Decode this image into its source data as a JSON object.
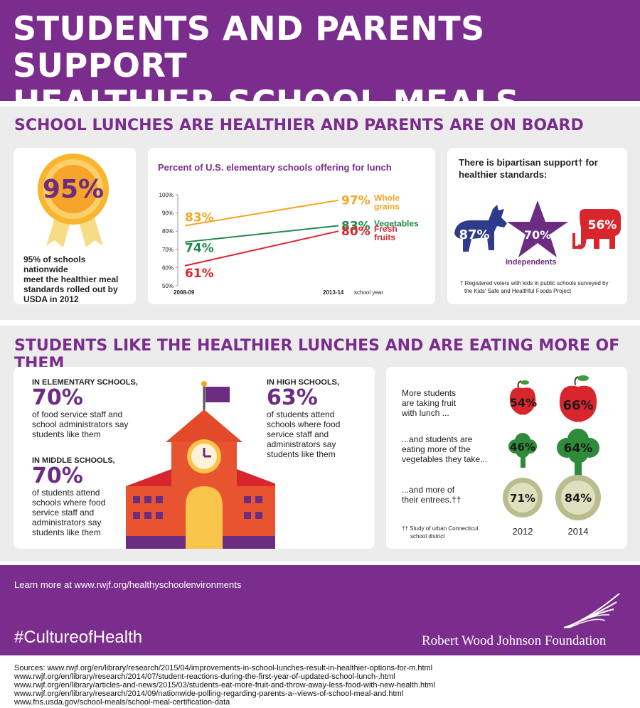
{
  "title": {
    "line1": "STUDENTS AND PARENTS SUPPORT",
    "line2": "HEALTHIER SCHOOL MEALS"
  },
  "section1": {
    "title": "SCHOOL LUNCHES ARE HEALTHIER AND PARENTS ARE ON BOARD",
    "ribbon": {
      "value": "95%",
      "text_lines": [
        "95% of schools nationwide",
        "meet the healthier meal",
        "standards rolled out by",
        "USDA in 2012"
      ]
    },
    "bipartisan": {
      "heading_lines": [
        "There is bipartisan support† for",
        "healthier standards:"
      ],
      "democrat": "87%",
      "independent": "70%",
      "independent_label": "Independents",
      "republican": "56%",
      "footnote_lines": [
        "† Registered voters with kids in public schools surveyed by",
        "the Kids' Safe and Healthful Foods Project"
      ]
    }
  },
  "chart_data": {
    "type": "line",
    "title": "Percent of U.S. elementary schools offering for lunch",
    "x": [
      "2008-09",
      "2013-14"
    ],
    "x_end_suffix": "school year",
    "ylim": [
      50,
      100
    ],
    "yticks": [
      "100%",
      "90%",
      "80%",
      "70%",
      "60%",
      "50%"
    ],
    "series": [
      {
        "name": "Whole grains",
        "name_lines": [
          "Whole",
          "grains"
        ],
        "values": [
          83,
          97
        ],
        "labels": [
          "83%",
          "97%"
        ],
        "color": "#f5a623"
      },
      {
        "name": "Vegetables",
        "name_lines": [
          "Vegetables"
        ],
        "values": [
          74,
          83
        ],
        "labels": [
          "74%",
          "83%"
        ],
        "color": "#1f8a4c"
      },
      {
        "name": "Fresh fruits",
        "name_lines": [
          "Fresh",
          "fruits"
        ],
        "values": [
          61,
          80
        ],
        "labels": [
          "61%",
          "80%"
        ],
        "color": "#d9262c"
      }
    ]
  },
  "section2": {
    "title": "STUDENTS LIKE THE HEALTHIER LUNCHES AND ARE EATING MORE OF THEM",
    "elementary": {
      "heading": "IN ELEMENTARY SCHOOLS,",
      "value": "70%",
      "text_lines": [
        "of food service staff and",
        "school administrators say",
        "students like them"
      ]
    },
    "middle": {
      "heading": "IN MIDDLE SCHOOLS,",
      "value": "70%",
      "text_lines": [
        "of students attend",
        "schools where food",
        "service staff and",
        "administrators say",
        "students like them"
      ]
    },
    "high": {
      "heading": "IN HIGH SCHOOLS,",
      "value": "63%",
      "text_lines": [
        "of students attend",
        "schools where food",
        "service staff and",
        "administrators say",
        "students like them"
      ]
    },
    "comparison": {
      "rows": [
        {
          "text_lines": [
            "More students",
            "are taking fruit",
            "with lunch ..."
          ],
          "v2012": "54%",
          "v2014": "66%",
          "icon": "apple-icon"
        },
        {
          "text_lines": [
            "...and students are",
            "eating more of the",
            "vegetables they take..."
          ],
          "v2012": "46%",
          "v2014": "64%",
          "icon": "broccoli-icon"
        },
        {
          "text_lines": [
            "...and more of",
            "their entrees.††"
          ],
          "v2012": "71%",
          "v2014": "84%",
          "icon": "plate-icon"
        }
      ],
      "year1": "2012",
      "year2": "2014",
      "footnote_lines": [
        "†† Study of urban Connecticut",
        "school district"
      ]
    }
  },
  "footer": {
    "learn_more": "Learn more at www.rwjf.org/healthyschoolenvironments",
    "hashtag": "#CultureofHealth",
    "foundation": "Robert Wood Johnson Foundation"
  },
  "sources": [
    "Sources: www.rwjf.org/en/library/research/2015/04/improvements-in-school-lunches-result-in-healthier-options-for-m.html",
    "www.rwjf.org/en/library/research/2014/07/student-reactions-during-the-first-year-of-updated-school-lunch-.html",
    "www.rwjf.org/en/library/articles-and-news/2015/03/students-eat-more-fruit-and-throw-away-less-food-with-new-health.html",
    "www.rwjf.org/en/library/research/2014/09/nationwide-polling-regarding-parents-a--views-of-school-meal-and.html",
    "www.fns.usda.gov/school-meals/school-meal-certification-data"
  ],
  "colors": {
    "purple": "#7a2d8c",
    "orange": "#f5a623",
    "green": "#1f8a4c",
    "red": "#d9262c",
    "democrat_blue": "#2e3a8c",
    "republican_red": "#d9262c"
  }
}
